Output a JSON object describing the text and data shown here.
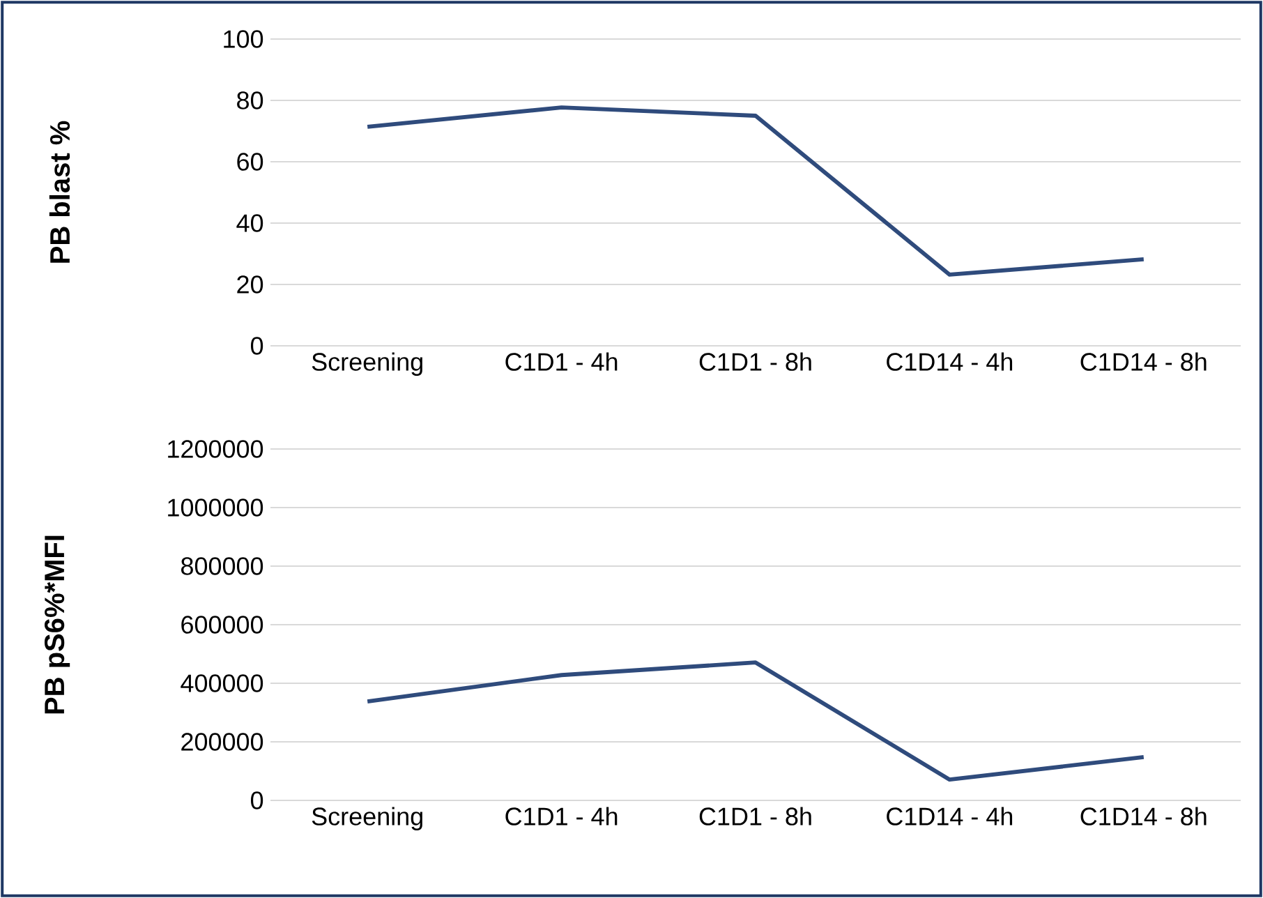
{
  "chart_data": [
    {
      "type": "line",
      "ylabel": "PB blast %",
      "categories": [
        "Screening",
        "C1D1 - 4h",
        "C1D1 - 8h",
        "C1D14 -  4h",
        "C1D14 -  8h"
      ],
      "values": [
        71.4,
        77.7,
        75,
        23.2,
        28.2
      ],
      "color": "#2f4b7c",
      "ylim": [
        0,
        100
      ],
      "yticks": [
        0,
        20,
        40,
        60,
        80,
        100
      ],
      "grid": "y",
      "marker": "none",
      "line_style": "solid"
    },
    {
      "type": "line",
      "ylabel": "PB pS6%*MFI",
      "categories": [
        "Screening",
        "C1D1 - 4h",
        "C1D1 - 8h",
        "C1D14 -  4h",
        "C1D14 -  8h"
      ],
      "values": [
        338000,
        428000,
        471000,
        71000,
        148000
      ],
      "color": "#2f4b7c",
      "ylim": [
        0,
        1200000
      ],
      "yticks": [
        0,
        200000,
        400000,
        600000,
        800000,
        1000000,
        1200000
      ],
      "grid": "y",
      "marker": "none",
      "line_style": "solid"
    }
  ]
}
